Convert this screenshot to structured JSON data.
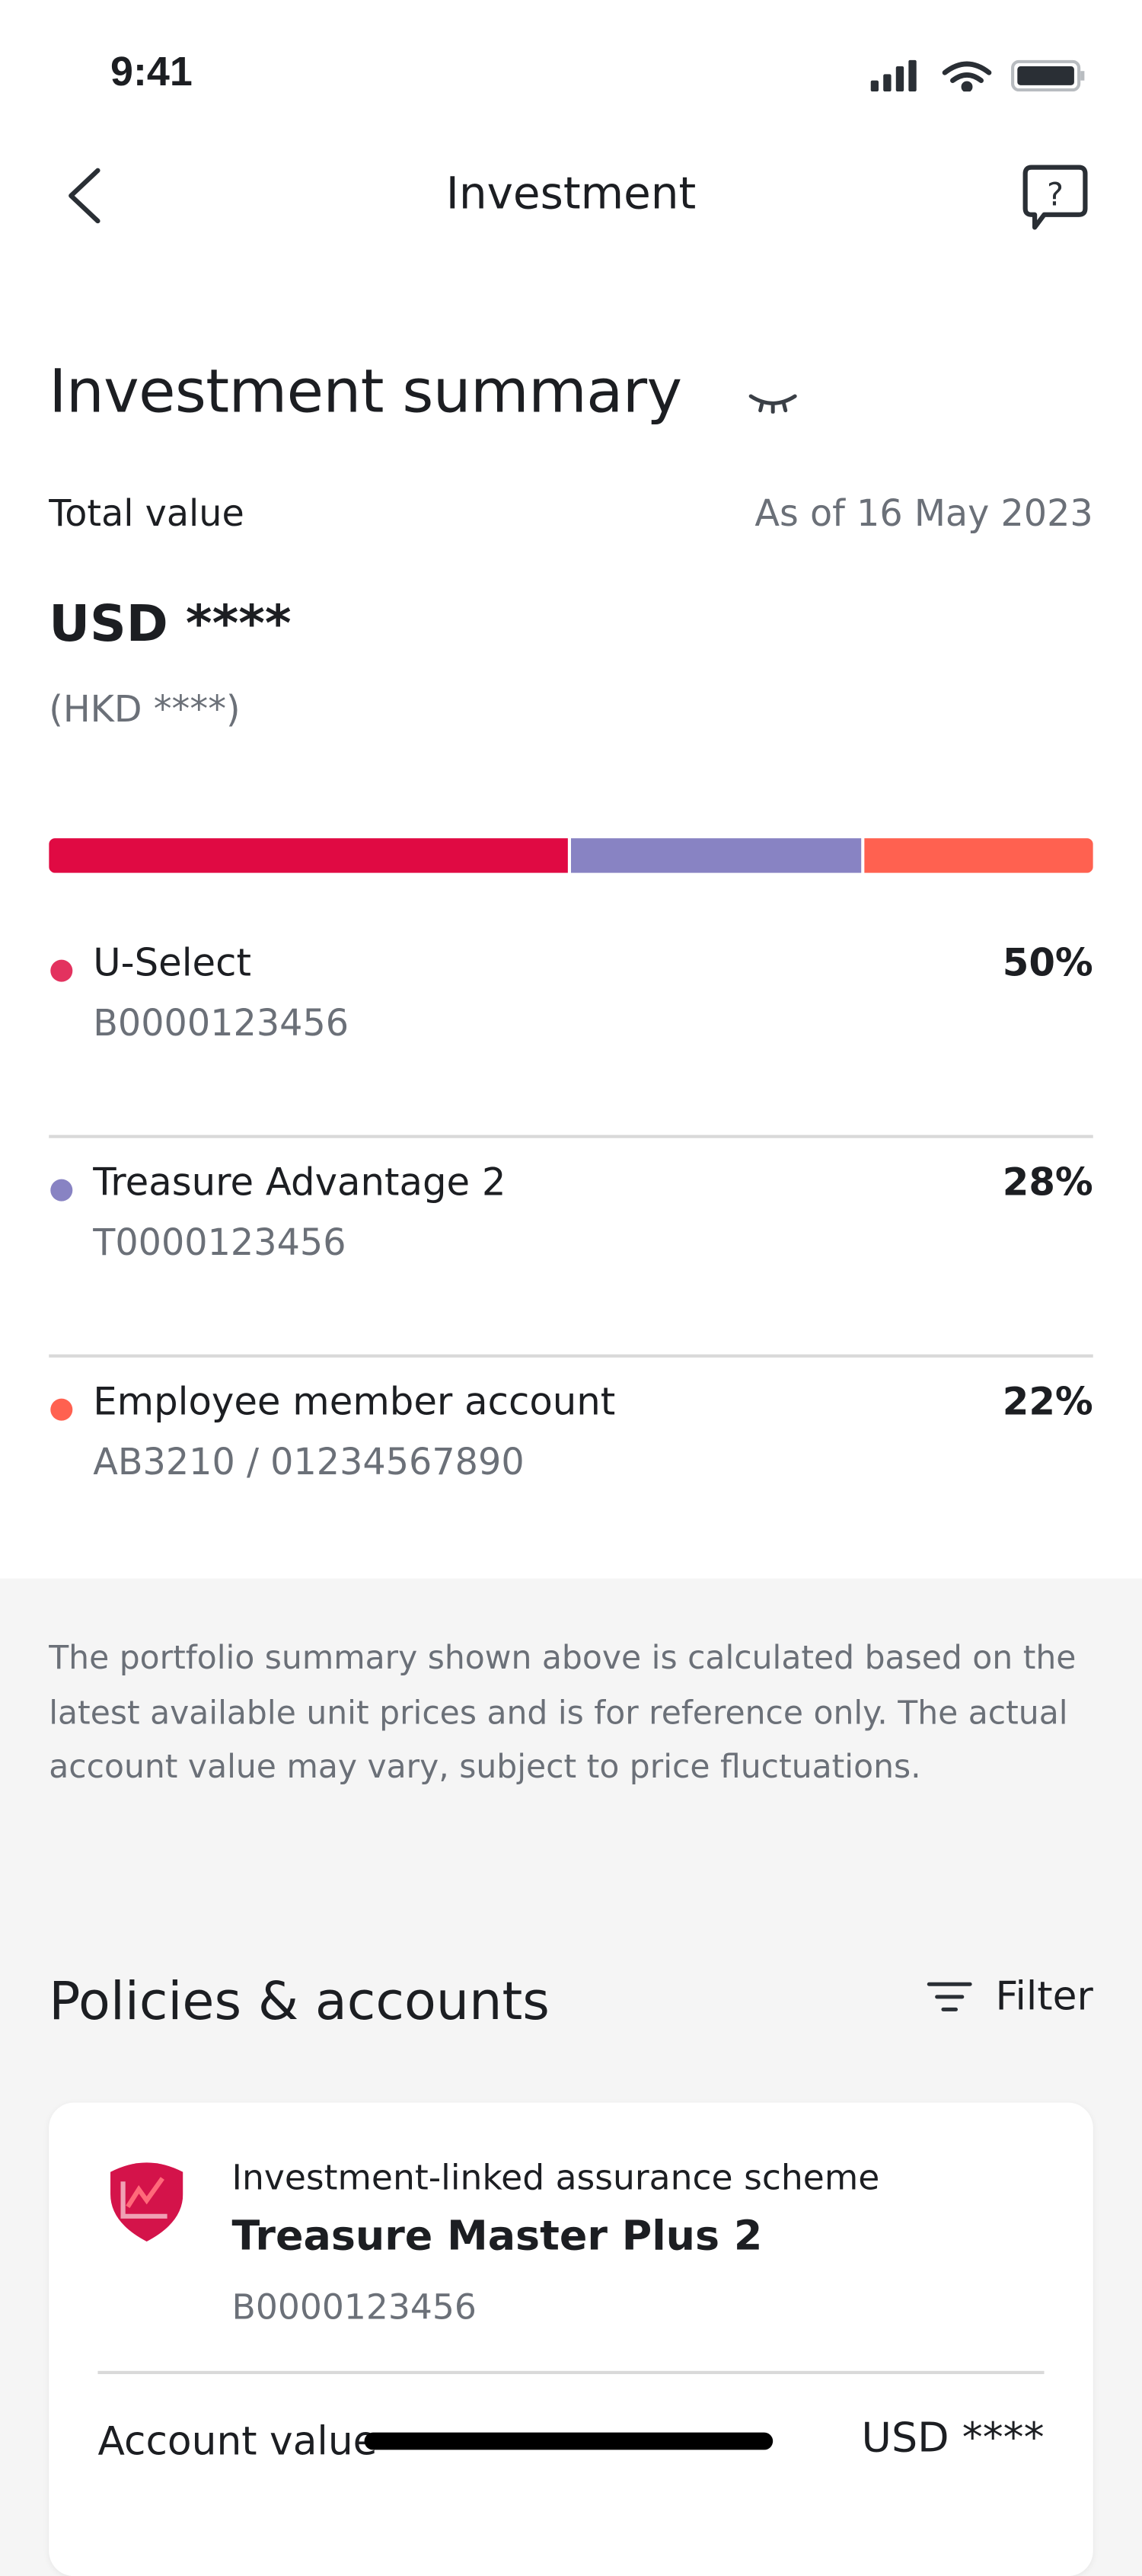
{
  "status_bar": {
    "time": "9:41"
  },
  "nav": {
    "title": "Investment",
    "back_icon": "chevron-left-icon",
    "help_icon": "help-chat-icon"
  },
  "summary": {
    "title": "Investment summary",
    "visibility_icon": "eye-closed-icon",
    "total_label": "Total value",
    "as_of": "As of 16 May 2023",
    "total_value": "USD ****",
    "total_value_secondary": "(HKD ****)"
  },
  "allocation": [
    {
      "name": "U-Select",
      "id": "B0000123456",
      "percent": "50%",
      "share": 50,
      "color": "#e00a43",
      "dot_color": "#e3325f"
    },
    {
      "name": "Treasure Advantage 2",
      "id": "T0000123456",
      "percent": "28%",
      "share": 28,
      "color": "#8883c3",
      "dot_color": "#8883c3"
    },
    {
      "name": "Employee member account",
      "id": "AB3210 / 01234567890",
      "percent": "22%",
      "share": 22,
      "color": "#ff6150",
      "dot_color": "#ff6150"
    }
  ],
  "disclaimer": "The portfolio summary shown above is calculated based on the latest available unit prices and is for reference only. The actual account value may vary, subject to price fluctuations.",
  "policies": {
    "title": "Policies & accounts",
    "filter_label": "Filter",
    "cards": [
      {
        "category": "Investment-linked assurance scheme",
        "name": "Treasure Master Plus 2",
        "id": "B0000123456",
        "value_label": "Account value",
        "value": "USD ****",
        "icon": "shield-chart-icon"
      }
    ]
  }
}
